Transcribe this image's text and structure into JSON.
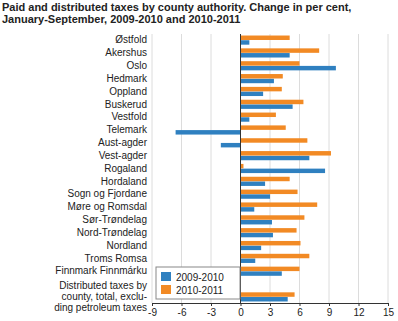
{
  "chart_data": {
    "type": "bar",
    "orientation": "horizontal",
    "title": "Paid and distributed taxes by county authority. Change in per cent,\nJanuary-September, 2009-2010 and 2010-2011",
    "categories": [
      "Østfold",
      "Akershus",
      "Oslo",
      "Hedmark",
      "Oppland",
      "Buskerud",
      "Vestfold",
      "Telemark",
      "Aust-agder",
      "Vest-agder",
      "Rogaland",
      "Hordaland",
      "Sogn og Fjordane",
      "Møre og Romsdal",
      "Sør-Trøndelag",
      "Nord-Trøndelag",
      "Nordland",
      "Troms Romsa",
      "Finnmark Finnmárku",
      null,
      "Distributed taxes by\ncounty, total, exclu-\nding petroleum taxes"
    ],
    "series": [
      {
        "name": "2009-2010",
        "color": "#2f80c0",
        "values": [
          0.9,
          5.0,
          9.7,
          3.4,
          2.3,
          5.3,
          0.9,
          -6.6,
          -2.0,
          7.0,
          8.6,
          2.5,
          3.0,
          1.4,
          3.2,
          3.3,
          2.1,
          1.5,
          4.2,
          null,
          4.8
        ]
      },
      {
        "name": "2010-2011",
        "color": "#f28a24",
        "values": [
          5.0,
          8.0,
          6.0,
          4.3,
          4.2,
          6.4,
          3.6,
          4.6,
          6.8,
          9.2,
          0.3,
          5.0,
          5.8,
          7.8,
          6.5,
          5.7,
          6.1,
          7.0,
          6.0,
          null,
          5.5
        ]
      }
    ],
    "xlim": [
      -9,
      15
    ],
    "xticks": [
      -9,
      -6,
      -3,
      0,
      3,
      6,
      9,
      12,
      15
    ],
    "grid": true,
    "legend": "lower left"
  }
}
